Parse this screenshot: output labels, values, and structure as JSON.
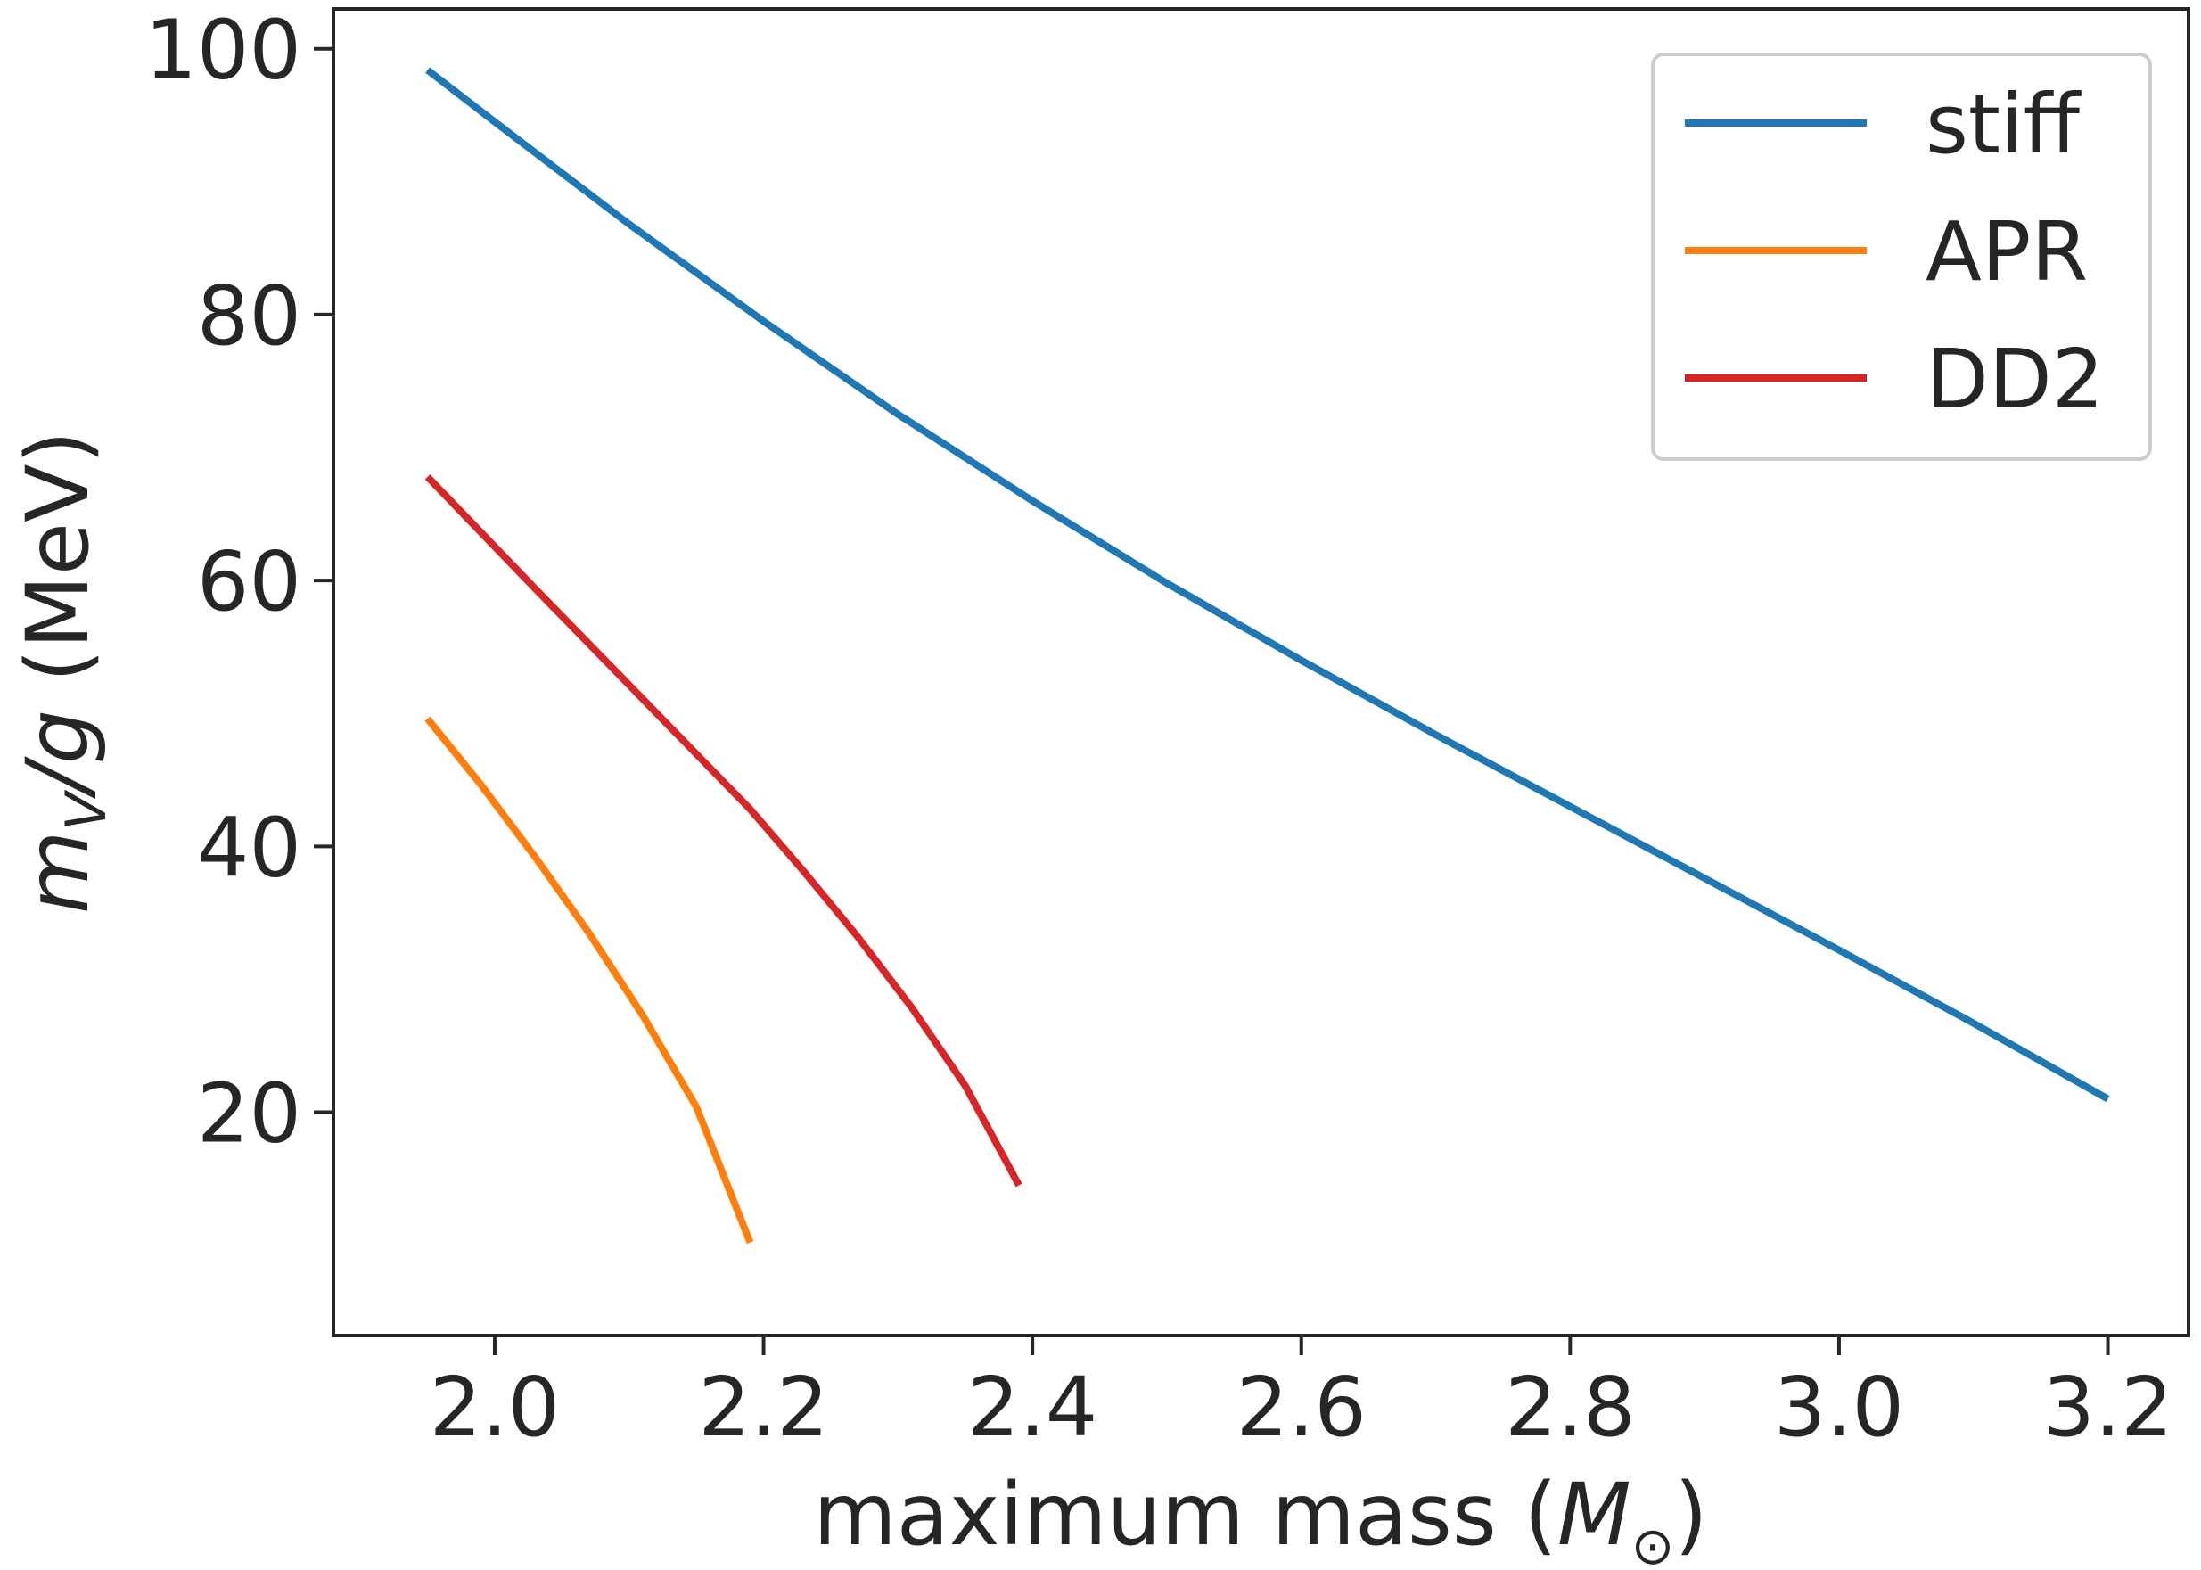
{
  "chart_data": {
    "type": "line",
    "title": "",
    "xlabel": "maximum mass (M⊙)",
    "xlabel_parts": {
      "prefix": "maximum mass (",
      "symbol": "M",
      "subscript": "⊙",
      "suffix": ")"
    },
    "ylabel": "mV/g (MeV)",
    "ylabel_parts": {
      "var": "m",
      "sub": "V",
      "slash_g": "/g",
      "unit": " (MeV)"
    },
    "xlim": [
      1.88,
      3.26
    ],
    "ylim": [
      3.2,
      103
    ],
    "xticks": [
      2.0,
      2.2,
      2.4,
      2.6,
      2.8,
      3.0,
      3.2
    ],
    "xtick_labels": [
      "2.0",
      "2.2",
      "2.4",
      "2.6",
      "2.8",
      "3.0",
      "3.2"
    ],
    "yticks": [
      20,
      40,
      60,
      80,
      100
    ],
    "ytick_labels": [
      "20",
      "40",
      "60",
      "80",
      "100"
    ],
    "grid": false,
    "legend_position": "top-right",
    "series": [
      {
        "name": "stiff",
        "color": "#1f77b4",
        "x": [
          1.95,
          2.0,
          2.1,
          2.2,
          2.3,
          2.4,
          2.5,
          2.6,
          2.7,
          2.8,
          2.9,
          3.0,
          3.1,
          3.2
        ],
        "y": [
          98.4,
          94.5,
          86.8,
          79.5,
          72.5,
          66.0,
          59.8,
          54.0,
          48.4,
          43.0,
          37.6,
          32.2,
          26.7,
          21.0
        ]
      },
      {
        "name": "APR",
        "color": "#ff7f0e",
        "x": [
          1.95,
          1.99,
          2.03,
          2.07,
          2.11,
          2.15,
          2.19
        ],
        "y": [
          49.6,
          44.6,
          39.2,
          33.5,
          27.3,
          20.4,
          10.2
        ]
      },
      {
        "name": "DD2",
        "color": "#d62728",
        "x": [
          1.95,
          2.03,
          2.11,
          2.19,
          2.23,
          2.27,
          2.31,
          2.35,
          2.39
        ],
        "y": [
          67.8,
          59.4,
          51.1,
          42.8,
          38.1,
          33.2,
          27.9,
          22.0,
          14.5
        ]
      }
    ]
  }
}
